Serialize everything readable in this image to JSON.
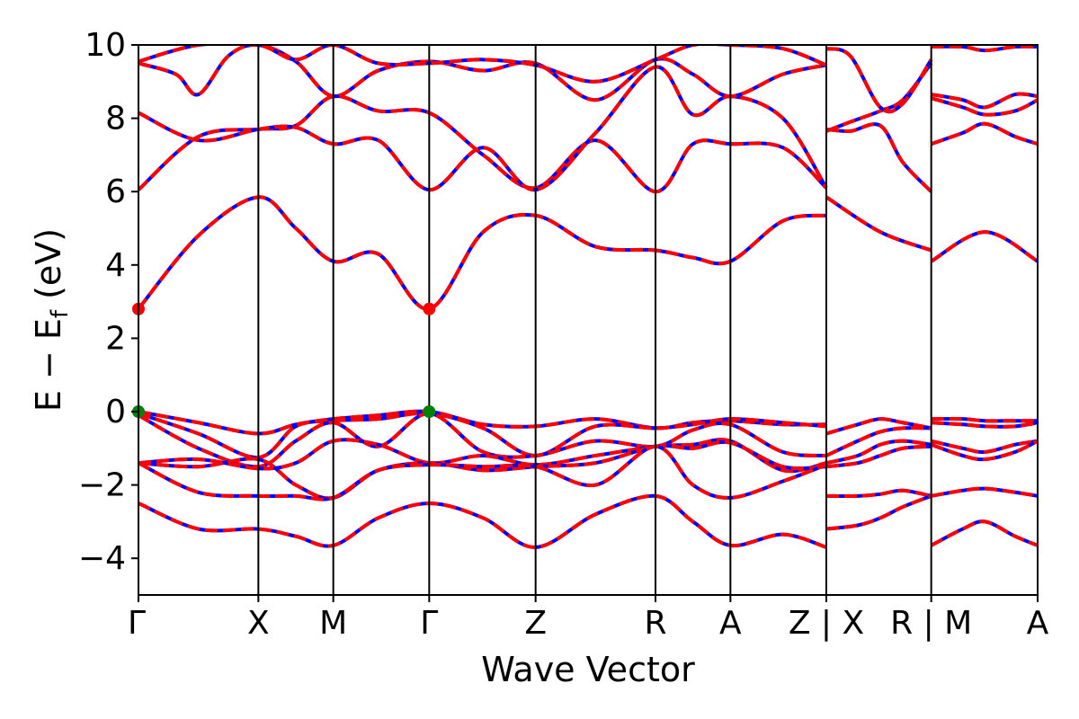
{
  "chart_data": {
    "type": "line",
    "xlabel": "Wave Vector",
    "ylabel": "E − E",
    "ylabel_sub": "f",
    "ylabel_unit": " (eV)",
    "ylim": [
      -5,
      10
    ],
    "yticks": [
      -4,
      -2,
      0,
      2,
      4,
      6,
      8,
      10
    ],
    "ytick_labels": [
      "−4",
      "−2",
      "0",
      "2",
      "4",
      "6",
      "8",
      "10"
    ],
    "grid": false,
    "kpath": {
      "xlim": [
        0,
        6.0
      ],
      "ticks": [
        {
          "x": 0.0,
          "label": "Γ"
        },
        {
          "x": 0.8,
          "label": "X"
        },
        {
          "x": 1.3,
          "label": "M"
        },
        {
          "x": 1.94,
          "label": "Γ"
        },
        {
          "x": 2.65,
          "label": "Z"
        },
        {
          "x": 3.45,
          "label": "R"
        },
        {
          "x": 3.95,
          "label": "A"
        },
        {
          "x": 4.59,
          "label": "Z | X"
        },
        {
          "x": 5.29,
          "label": "R | M"
        },
        {
          "x": 6.0,
          "label": "A"
        }
      ],
      "segment_breaks": [
        4.59,
        5.29
      ]
    },
    "line_colors": {
      "blue": "#0000ff",
      "red": "#ff0000",
      "frame": "#000000"
    },
    "band_extrema": [
      {
        "name": "CBM",
        "x": 0.0,
        "y": 2.8,
        "color": "#ff0000"
      },
      {
        "name": "CBM",
        "x": 1.94,
        "y": 2.8,
        "color": "#ff0000"
      },
      {
        "name": "VBM",
        "x": 0.0,
        "y": 0.0,
        "color": "#008000"
      },
      {
        "name": "VBM",
        "x": 1.94,
        "y": 0.0,
        "color": "#008000"
      }
    ],
    "bands": [
      {
        "x": [
          0,
          0.4,
          0.8,
          1.05,
          1.3,
          1.6,
          1.94,
          2.3,
          2.65,
          3.05,
          3.45,
          3.7,
          3.95,
          4.3,
          4.59
        ],
        "y": [
          2.8,
          4.8,
          5.85,
          5.0,
          4.1,
          4.3,
          2.8,
          4.9,
          5.35,
          4.5,
          4.4,
          4.2,
          4.1,
          5.2,
          5.35
        ]
      },
      {
        "x": [
          4.59,
          4.95,
          5.29
        ],
        "y": [
          5.85,
          4.9,
          4.4
        ]
      },
      {
        "x": [
          5.29,
          5.65,
          6.0
        ],
        "y": [
          4.1,
          4.9,
          4.1
        ]
      },
      {
        "x": [
          0,
          0.4,
          0.8,
          1.05,
          1.3,
          1.6,
          1.94,
          2.3,
          2.65,
          3.05,
          3.45,
          3.7,
          3.95,
          4.3,
          4.59
        ],
        "y": [
          6.05,
          7.5,
          7.7,
          7.8,
          8.6,
          8.2,
          8.15,
          7.0,
          6.1,
          7.4,
          6.0,
          7.3,
          7.3,
          7.2,
          6.1
        ]
      },
      {
        "x": [
          0,
          0.4,
          0.8,
          1.05,
          1.3,
          1.6,
          1.94,
          2.3,
          2.65,
          3.05,
          3.45,
          3.7,
          3.95,
          4.3,
          4.59
        ],
        "y": [
          8.15,
          7.4,
          7.7,
          7.75,
          7.3,
          7.4,
          6.05,
          7.2,
          6.05,
          7.6,
          9.4,
          8.1,
          8.6,
          8.0,
          6.1
        ]
      },
      {
        "x": [
          0,
          0.25,
          0.4,
          0.6,
          0.8,
          1.05,
          1.3,
          1.6,
          1.94,
          2.3,
          2.65,
          3.05,
          3.45,
          3.7,
          3.95,
          4.3,
          4.59
        ],
        "y": [
          9.5,
          9.2,
          8.65,
          9.7,
          10.0,
          9.55,
          8.6,
          9.3,
          9.55,
          9.3,
          9.5,
          8.5,
          9.6,
          9.2,
          8.6,
          9.2,
          9.45
        ]
      },
      {
        "x": [
          0,
          0.4,
          0.8,
          1.05,
          1.3,
          1.6,
          1.94,
          2.3,
          2.65,
          3.05,
          3.45,
          3.7,
          3.95,
          4.3,
          4.59
        ],
        "y": [
          9.55,
          10.0,
          10.0,
          9.6,
          10.0,
          9.5,
          9.5,
          9.6,
          9.45,
          9.0,
          9.6,
          10.0,
          10.0,
          9.9,
          9.45
        ]
      },
      {
        "x": [
          4.59,
          4.75,
          4.95,
          5.1,
          5.29
        ],
        "y": [
          7.7,
          7.65,
          7.8,
          6.8,
          6.0
        ]
      },
      {
        "x": [
          4.59,
          4.75,
          4.95,
          5.1,
          5.29
        ],
        "y": [
          7.65,
          7.9,
          8.2,
          8.5,
          9.5
        ]
      },
      {
        "x": [
          4.59,
          4.75,
          4.95,
          5.1,
          5.29
        ],
        "y": [
          9.9,
          9.7,
          8.3,
          8.4,
          9.6
        ]
      },
      {
        "x": [
          5.29,
          5.5,
          5.65,
          5.85,
          6.0
        ],
        "y": [
          7.3,
          7.6,
          7.85,
          7.5,
          7.3
        ]
      },
      {
        "x": [
          5.29,
          5.5,
          5.65,
          5.85,
          6.0
        ],
        "y": [
          8.55,
          8.3,
          8.1,
          8.2,
          8.5
        ]
      },
      {
        "x": [
          5.29,
          5.5,
          5.65,
          5.85,
          6.0
        ],
        "y": [
          8.65,
          8.5,
          8.3,
          8.65,
          8.6
        ]
      },
      {
        "x": [
          5.29,
          5.5,
          5.65,
          5.85,
          6.0
        ],
        "y": [
          9.95,
          9.95,
          9.85,
          9.95,
          9.95
        ]
      },
      {
        "x": [
          0,
          0.4,
          0.8,
          1.05,
          1.3,
          1.6,
          1.94,
          2.3,
          2.65,
          3.05,
          3.45,
          3.7,
          3.95,
          4.3,
          4.59
        ],
        "y": [
          0.0,
          -0.3,
          -0.6,
          -0.35,
          -0.2,
          -0.1,
          0.0,
          -0.35,
          -0.4,
          -0.2,
          -0.45,
          -0.3,
          -0.25,
          -0.35,
          -0.35
        ]
      },
      {
        "x": [
          0,
          0.4,
          0.8,
          1.05,
          1.3,
          1.6,
          1.94,
          2.3,
          2.65,
          3.05,
          3.45,
          3.7,
          3.95,
          4.3,
          4.59
        ],
        "y": [
          -0.05,
          -0.6,
          -1.25,
          -0.4,
          -0.25,
          -0.2,
          -0.05,
          -0.45,
          -1.2,
          -0.4,
          -0.45,
          -0.35,
          -0.2,
          -0.3,
          -0.4
        ]
      },
      {
        "x": [
          0,
          0.4,
          0.8,
          1.05,
          1.3,
          1.6,
          1.94,
          2.3,
          2.65,
          3.05,
          3.45,
          3.7,
          3.95,
          4.3,
          4.59
        ],
        "y": [
          -0.1,
          -1.0,
          -1.5,
          -0.8,
          -0.3,
          -0.95,
          -0.05,
          -1.1,
          -1.2,
          -0.8,
          -0.95,
          -0.5,
          -0.35,
          -1.1,
          -1.2
        ]
      },
      {
        "x": [
          0,
          0.4,
          0.8,
          1.05,
          1.3,
          1.6,
          1.94,
          2.3,
          2.65,
          3.05,
          3.45,
          3.7,
          3.95,
          4.3,
          4.59
        ],
        "y": [
          -1.4,
          -1.3,
          -1.55,
          -1.4,
          -0.8,
          -0.9,
          -1.4,
          -1.2,
          -1.45,
          -1.2,
          -0.95,
          -0.9,
          -0.8,
          -1.6,
          -1.4
        ]
      },
      {
        "x": [
          0,
          0.4,
          0.8,
          1.05,
          1.3,
          1.6,
          1.94,
          2.3,
          2.65,
          3.05,
          3.45,
          3.7,
          3.95,
          4.3,
          4.59
        ],
        "y": [
          -1.4,
          -1.5,
          -1.3,
          -2.0,
          -2.35,
          -1.6,
          -1.4,
          -1.6,
          -1.5,
          -1.4,
          -0.95,
          -1.0,
          -0.85,
          -1.5,
          -1.5
        ]
      },
      {
        "x": [
          0,
          0.4,
          0.8,
          1.05,
          1.3,
          1.6,
          1.94,
          2.3,
          2.65,
          3.05,
          3.45,
          3.7,
          3.95,
          4.3,
          4.59
        ],
        "y": [
          -1.4,
          -2.2,
          -2.3,
          -2.3,
          -2.35,
          -1.6,
          -1.45,
          -1.5,
          -1.5,
          -2.0,
          -0.95,
          -2.0,
          -2.35,
          -1.9,
          -1.45
        ]
      },
      {
        "x": [
          0,
          0.4,
          0.8,
          1.05,
          1.3,
          1.6,
          1.94,
          2.3,
          2.65,
          3.05,
          3.45,
          3.7,
          3.95,
          4.3,
          4.59
        ],
        "y": [
          -2.5,
          -3.2,
          -3.2,
          -3.4,
          -3.65,
          -2.9,
          -2.5,
          -2.9,
          -3.7,
          -2.8,
          -2.3,
          -3.0,
          -3.65,
          -3.35,
          -3.7
        ]
      },
      {
        "x": [
          4.59,
          4.8,
          4.95,
          5.1,
          5.29
        ],
        "y": [
          -0.6,
          -0.35,
          -0.2,
          -0.3,
          -0.45
        ]
      },
      {
        "x": [
          4.59,
          4.8,
          4.95,
          5.1,
          5.29
        ],
        "y": [
          -1.2,
          -0.8,
          -0.55,
          -0.45,
          -0.45
        ]
      },
      {
        "x": [
          4.59,
          4.8,
          4.95,
          5.1,
          5.29
        ],
        "y": [
          -1.4,
          -1.2,
          -0.9,
          -0.8,
          -0.9
        ]
      },
      {
        "x": [
          4.59,
          4.8,
          4.95,
          5.1,
          5.29
        ],
        "y": [
          -1.5,
          -1.4,
          -1.2,
          -1.0,
          -0.95
        ]
      },
      {
        "x": [
          4.59,
          4.8,
          4.95,
          5.1,
          5.29
        ],
        "y": [
          -2.3,
          -2.3,
          -2.25,
          -2.15,
          -2.3
        ]
      },
      {
        "x": [
          4.59,
          4.8,
          4.95,
          5.1,
          5.29
        ],
        "y": [
          -3.2,
          -3.1,
          -2.9,
          -2.6,
          -2.3
        ]
      },
      {
        "x": [
          5.29,
          5.5,
          5.65,
          5.85,
          6.0
        ],
        "y": [
          -0.2,
          -0.2,
          -0.25,
          -0.25,
          -0.25
        ]
      },
      {
        "x": [
          5.29,
          5.5,
          5.65,
          5.85,
          6.0
        ],
        "y": [
          -0.3,
          -0.35,
          -0.4,
          -0.4,
          -0.3
        ]
      },
      {
        "x": [
          5.29,
          5.5,
          5.65,
          5.85,
          6.0
        ],
        "y": [
          -0.8,
          -1.0,
          -1.1,
          -0.9,
          -0.8
        ]
      },
      {
        "x": [
          5.29,
          5.5,
          5.65,
          5.85,
          6.0
        ],
        "y": [
          -0.9,
          -1.2,
          -1.3,
          -1.1,
          -0.8
        ]
      },
      {
        "x": [
          5.29,
          5.5,
          5.65,
          5.85,
          6.0
        ],
        "y": [
          -2.3,
          -2.15,
          -2.1,
          -2.2,
          -2.3
        ]
      },
      {
        "x": [
          5.29,
          5.5,
          5.65,
          5.85,
          6.0
        ],
        "y": [
          -3.65,
          -3.2,
          -3.0,
          -3.4,
          -3.65
        ]
      }
    ]
  }
}
